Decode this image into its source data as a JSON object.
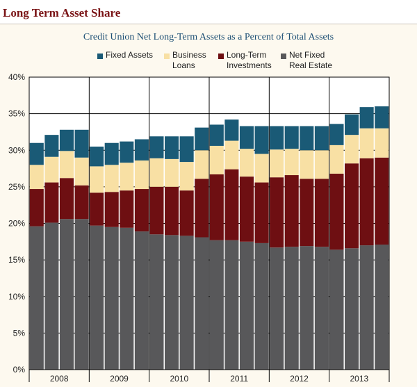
{
  "header": {
    "title": "Long Term Asset Share"
  },
  "colors": {
    "fixed_assets": "#1a5a76",
    "business_loans": "#f8e0a4",
    "long_term_investments": "#6e0f12",
    "net_fixed_real_estate": "#58585a"
  },
  "chart_data": {
    "type": "bar",
    "stacked": true,
    "title": "Credit Union Net Long-Term Assets as a Percent of Total Assets",
    "ylabel": "",
    "xlabel": "",
    "ylim": [
      0,
      40
    ],
    "yticks": [
      "0%",
      "5%",
      "10%",
      "15%",
      "20%",
      "25%",
      "30%",
      "35%",
      "40%"
    ],
    "year_labels": [
      "2008",
      "2009",
      "2010",
      "2011",
      "2012",
      "2013"
    ],
    "legend": [
      {
        "label_lines": [
          "Fixed Assets"
        ],
        "color_key": "fixed_assets"
      },
      {
        "label_lines": [
          "Business",
          "Loans"
        ],
        "color_key": "business_loans"
      },
      {
        "label_lines": [
          "Long-Term",
          "Investments"
        ],
        "color_key": "long_term_investments"
      },
      {
        "label_lines": [
          "Net Fixed",
          "Real Estate"
        ],
        "color_key": "net_fixed_real_estate"
      }
    ],
    "categories": [
      "2008 Q1",
      "2008 Q2",
      "2008 Q3",
      "2008 Q4",
      "2009 Q1",
      "2009 Q2",
      "2009 Q3",
      "2009 Q4",
      "2010 Q1",
      "2010 Q2",
      "2010 Q3",
      "2010 Q4",
      "2011 Q1",
      "2011 Q2",
      "2011 Q3",
      "2011 Q4",
      "2012 Q1",
      "2012 Q2",
      "2012 Q3",
      "2012 Q4",
      "2013 Q1",
      "2013 Q2",
      "2013 Q3",
      "2013 Q4"
    ],
    "series": [
      {
        "name": "Net Fixed Real Estate",
        "color_key": "net_fixed_real_estate",
        "values": [
          19.6,
          20.1,
          20.6,
          20.6,
          19.7,
          19.5,
          19.4,
          18.9,
          18.5,
          18.4,
          18.3,
          18.1,
          17.7,
          17.7,
          17.5,
          17.3,
          16.7,
          16.8,
          16.9,
          16.8,
          16.4,
          16.6,
          17.0,
          17.1
        ]
      },
      {
        "name": "Long-Term Investments",
        "color_key": "long_term_investments",
        "values": [
          5.1,
          5.5,
          5.6,
          4.6,
          4.5,
          4.8,
          5.1,
          5.8,
          6.5,
          6.6,
          6.2,
          8.0,
          9.0,
          9.7,
          8.9,
          8.3,
          9.6,
          9.8,
          9.2,
          9.3,
          10.4,
          11.6,
          11.9,
          11.9
        ]
      },
      {
        "name": "Business Loans",
        "color_key": "business_loans",
        "values": [
          3.3,
          3.5,
          3.7,
          3.8,
          3.6,
          3.7,
          3.8,
          3.9,
          3.9,
          3.8,
          3.9,
          3.9,
          3.9,
          3.9,
          3.8,
          3.9,
          3.8,
          3.6,
          3.9,
          3.9,
          3.9,
          3.9,
          4.1,
          4.0
        ]
      },
      {
        "name": "Fixed Assets",
        "color_key": "fixed_assets",
        "values": [
          3.0,
          3.0,
          2.9,
          3.8,
          2.7,
          3.0,
          2.9,
          2.9,
          3.0,
          3.1,
          3.5,
          3.1,
          2.9,
          2.9,
          3.1,
          3.8,
          3.2,
          3.1,
          3.3,
          3.3,
          2.9,
          2.8,
          2.9,
          3.0
        ]
      }
    ]
  }
}
